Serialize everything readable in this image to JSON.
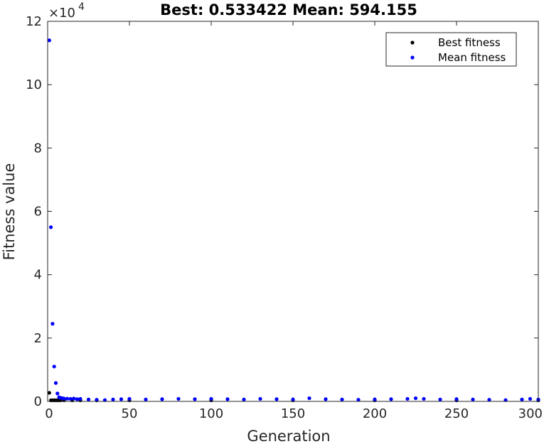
{
  "chart_data": {
    "type": "scatter",
    "title": "Best: 0.533422 Mean: 594.155",
    "xlabel": "Generation",
    "ylabel": "Fitness value",
    "xlim": [
      0,
      300
    ],
    "ylim": [
      0,
      120000
    ],
    "x_ticks": [
      "0",
      "50",
      "100",
      "150",
      "200",
      "250",
      "300"
    ],
    "y_ticks": [
      "0",
      "2",
      "4",
      "6",
      "8",
      "10",
      "12"
    ],
    "y_exponent": {
      "base": "×10",
      "power": "4"
    },
    "legend": {
      "position": "top-right"
    },
    "series": [
      {
        "name": "Best fitness",
        "color": "#000000",
        "x": [
          1,
          2,
          3,
          4,
          5,
          6,
          7,
          8,
          10,
          15,
          20,
          30,
          50,
          100,
          150,
          200,
          250,
          300
        ],
        "y": [
          2700,
          300,
          150,
          80,
          60,
          40,
          30,
          20,
          10,
          5,
          3,
          2,
          1.5,
          1,
          0.8,
          0.6,
          0.55,
          0.533422
        ]
      },
      {
        "name": "Mean fitness",
        "color": "#0000ff",
        "x": [
          1,
          2,
          3,
          4,
          5,
          6,
          7,
          8,
          9,
          10,
          12,
          14,
          16,
          18,
          20,
          25,
          30,
          35,
          40,
          45,
          50,
          60,
          70,
          80,
          90,
          100,
          110,
          120,
          130,
          140,
          150,
          160,
          170,
          180,
          190,
          200,
          210,
          220,
          225,
          230,
          240,
          250,
          260,
          270,
          280,
          290,
          295,
          300
        ],
        "y": [
          114000,
          55000,
          24500,
          11000,
          5800,
          2500,
          1300,
          1100,
          1000,
          900,
          850,
          800,
          900,
          700,
          800,
          600,
          500,
          400,
          600,
          700,
          800,
          600,
          700,
          800,
          700,
          800,
          700,
          600,
          800,
          700,
          600,
          1000,
          700,
          600,
          500,
          600,
          700,
          800,
          1000,
          800,
          600,
          700,
          600,
          500,
          400,
          600,
          800,
          594.155
        ]
      }
    ]
  }
}
